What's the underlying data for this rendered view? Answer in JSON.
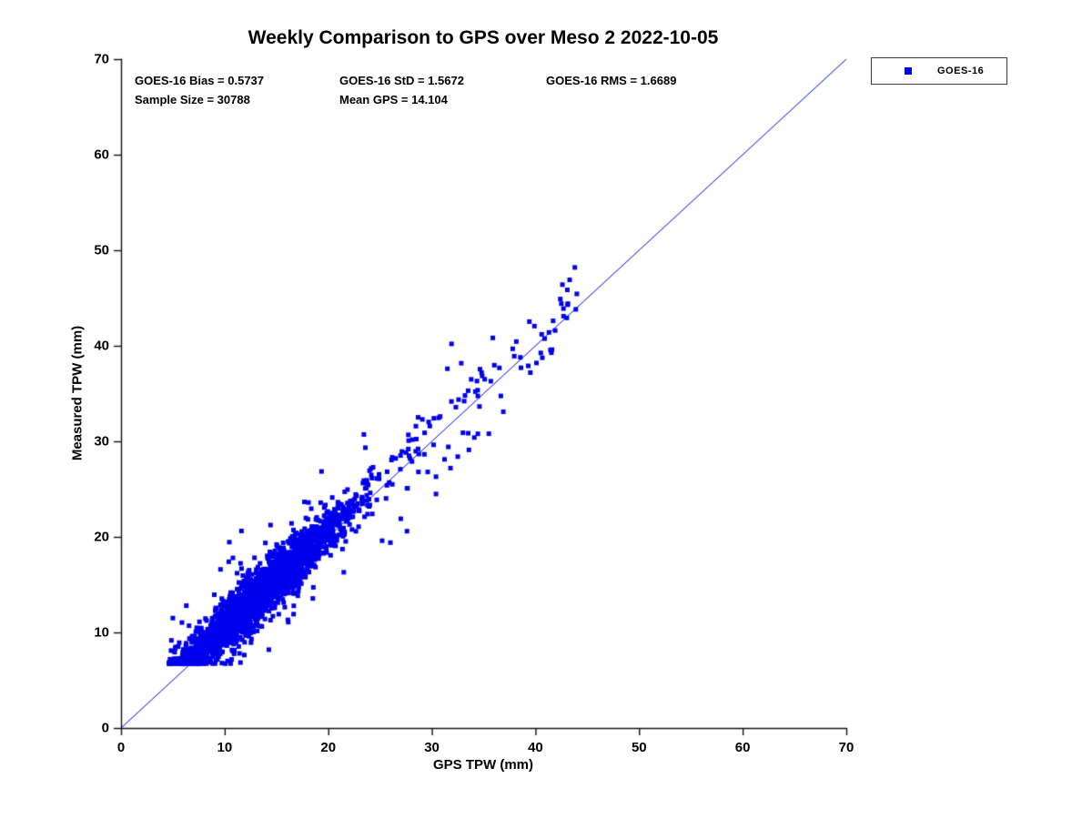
{
  "title": "Weekly Comparison to GPS over Meso 2 2022-10-05",
  "annotations": {
    "bias": "GOES-16 Bias = 0.5737",
    "std": "GOES-16 StD = 1.5672",
    "rms": "GOES-16 RMS = 1.6689",
    "sample_size": "Sample Size = 30788",
    "mean_gps": "Mean GPS = 14.104"
  },
  "legend": {
    "entries": [
      {
        "label": "GOES-16",
        "marker": "filled-square",
        "color": "#0000ee"
      }
    ]
  },
  "chart_data": {
    "type": "scatter",
    "title": "Weekly Comparison to GPS over Meso 2 2022-10-05",
    "xlabel": "GPS TPW (mm)",
    "ylabel": "Measured TPW (mm)",
    "xlim": [
      0,
      70
    ],
    "ylim": [
      0,
      70
    ],
    "xticks": [
      0,
      10,
      20,
      30,
      40,
      50,
      60,
      70
    ],
    "yticks": [
      0,
      10,
      20,
      30,
      40,
      50,
      60,
      70
    ],
    "grid": false,
    "legend_position": "outside-top-right",
    "reference_line": {
      "from": [
        0,
        0
      ],
      "to": [
        70,
        70
      ],
      "color": "#0000ee",
      "width": 1
    },
    "series": [
      {
        "name": "GOES-16",
        "marker": "filled-square",
        "color": "#0000ee",
        "n_points": 30788,
        "stats": {
          "bias": 0.5737,
          "std": 1.5672,
          "rms": 1.6689,
          "mean_gps": 14.104
        },
        "scatter_summary": {
          "description": "Dense diagonal cloud of blue squares slightly above the 1:1 line",
          "x_range": [
            4.5,
            44
          ],
          "y_range": [
            6.7,
            48.3
          ],
          "dense_cluster": {
            "x_mean": 13.1,
            "x_sd": 4.7,
            "x_min": 4.6,
            "x_max": 27.6,
            "y_noise_sd": 1.3,
            "y_floor": 6.7,
            "fraction": 0.974
          },
          "sparse_tail": {
            "x_min": 27.6,
            "x_max": 44.0,
            "y_noise_sd": 2.1,
            "fraction": 0.026
          }
        },
        "notable_points": [
          [
            31.9,
            40.2
          ],
          [
            31.5,
            37.6
          ],
          [
            33.5,
            35.3
          ],
          [
            33.2,
            34.8
          ],
          [
            34.8,
            37.2
          ],
          [
            35.1,
            36.5
          ],
          [
            30.8,
            32.6
          ],
          [
            29.8,
            31.6
          ],
          [
            33.0,
            30.9
          ],
          [
            34.1,
            30.4
          ],
          [
            35.5,
            30.8
          ],
          [
            36.9,
            33.1
          ],
          [
            30.4,
            26.3
          ],
          [
            31.8,
            27.2
          ],
          [
            32.5,
            28.4
          ],
          [
            29.6,
            26.8
          ],
          [
            27.6,
            20.6
          ],
          [
            26.0,
            19.4
          ],
          [
            25.2,
            19.6
          ],
          [
            27.0,
            21.9
          ],
          [
            21.5,
            16.3
          ],
          [
            38.6,
            37.7
          ],
          [
            39.3,
            37.9
          ],
          [
            40.1,
            38.2
          ],
          [
            40.6,
            41.2
          ],
          [
            41.3,
            41.4
          ],
          [
            41.9,
            41.6
          ],
          [
            41.6,
            39.6
          ],
          [
            42.4,
            44.9
          ],
          [
            42.6,
            46.4
          ],
          [
            42.7,
            43.9
          ],
          [
            43.1,
            44.3
          ],
          [
            43.3,
            46.9
          ],
          [
            43.8,
            48.2
          ],
          [
            9.6,
            16.6
          ],
          [
            10.4,
            17.4
          ],
          [
            10.8,
            17.8
          ],
          [
            11.2,
            16.2
          ],
          [
            10.2,
            13.2
          ],
          [
            5.0,
            11.5
          ],
          [
            6.3,
            12.8
          ]
        ]
      }
    ]
  }
}
